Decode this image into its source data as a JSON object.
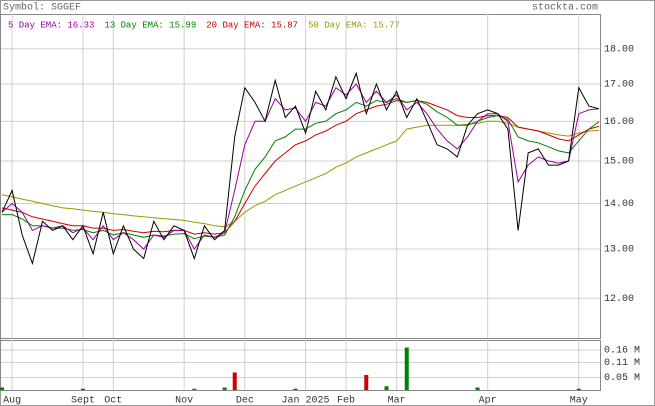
{
  "header": {
    "symbol": "Symbol: SGGEF",
    "site": "stockta.com"
  },
  "chart_data": [
    {
      "type": "line",
      "log_scale": true,
      "grid": true,
      "ylim": [
        11.25,
        19.05
      ],
      "yticks": [
        {
          "value": 12,
          "label": "12.00"
        },
        {
          "value": 13,
          "label": "13.00"
        },
        {
          "value": 14,
          "label": "14.00"
        },
        {
          "value": 15,
          "label": "15.00"
        },
        {
          "value": 16,
          "label": "16.00"
        },
        {
          "value": 17,
          "label": "17.00"
        },
        {
          "value": 18,
          "label": "18.00"
        }
      ],
      "series": [
        {
          "color": "#000000",
          "values": [
            13.8,
            14.3,
            13.3,
            12.7,
            13.6,
            13.4,
            13.5,
            13.2,
            13.5,
            12.9,
            13.8,
            12.9,
            13.5,
            13.0,
            12.8,
            13.6,
            13.2,
            13.5,
            13.4,
            12.8,
            13.5,
            13.2,
            13.4,
            15.6,
            16.9,
            16.5,
            16.0,
            17.1,
            16.1,
            16.4,
            15.7,
            16.8,
            16.3,
            17.2,
            16.6,
            17.3,
            16.2,
            17.0,
            16.3,
            16.8,
            16.1,
            16.6,
            16.0,
            15.4,
            15.3,
            15.1,
            15.9,
            16.2,
            16.3,
            16.2,
            15.8,
            13.4,
            15.2,
            15.3,
            14.9,
            14.9,
            15.0,
            16.9,
            16.4,
            16.33
          ]
        },
        {
          "name": "5 Day EMA: 16.33",
          "color": "#990099",
          "values": [
            13.8,
            14.0,
            13.8,
            13.4,
            13.5,
            13.45,
            13.5,
            13.35,
            13.45,
            13.2,
            13.5,
            13.2,
            13.35,
            13.2,
            13.0,
            13.3,
            13.25,
            13.4,
            13.4,
            13.0,
            13.3,
            13.25,
            13.35,
            14.3,
            15.4,
            16.0,
            16.0,
            16.6,
            16.3,
            16.35,
            16.0,
            16.5,
            16.4,
            16.9,
            16.7,
            17.0,
            16.5,
            16.8,
            16.5,
            16.7,
            16.3,
            16.5,
            16.2,
            15.8,
            15.5,
            15.3,
            15.6,
            16.0,
            16.2,
            16.2,
            16.0,
            14.5,
            14.9,
            15.1,
            15.0,
            14.95,
            15.0,
            16.2,
            16.3,
            16.33
          ]
        },
        {
          "name": "13 Day EMA: 15.99",
          "color": "#008000",
          "values": [
            13.75,
            13.75,
            13.65,
            13.5,
            13.5,
            13.45,
            13.45,
            13.4,
            13.42,
            13.35,
            13.4,
            13.3,
            13.35,
            13.3,
            13.25,
            13.3,
            13.28,
            13.32,
            13.33,
            13.22,
            13.28,
            13.25,
            13.3,
            13.7,
            14.3,
            14.8,
            15.1,
            15.5,
            15.6,
            15.8,
            15.8,
            15.95,
            16.0,
            16.2,
            16.3,
            16.5,
            16.4,
            16.55,
            16.5,
            16.6,
            16.5,
            16.55,
            16.45,
            16.25,
            16.1,
            15.9,
            15.9,
            16.0,
            16.1,
            16.15,
            16.05,
            15.6,
            15.5,
            15.45,
            15.35,
            15.25,
            15.2,
            15.5,
            15.8,
            15.99
          ]
        },
        {
          "name": "20 Day EMA: 15.87",
          "color": "#cc0000",
          "values": [
            13.9,
            13.85,
            13.8,
            13.7,
            13.65,
            13.6,
            13.55,
            13.5,
            13.5,
            13.45,
            13.45,
            13.4,
            13.42,
            13.38,
            13.35,
            13.38,
            13.37,
            13.4,
            13.4,
            13.32,
            13.35,
            13.32,
            13.35,
            13.6,
            14.0,
            14.4,
            14.7,
            15.0,
            15.2,
            15.4,
            15.5,
            15.65,
            15.75,
            15.9,
            16.0,
            16.2,
            16.3,
            16.4,
            16.45,
            16.55,
            16.5,
            16.55,
            16.5,
            16.4,
            16.3,
            16.15,
            16.1,
            16.1,
            16.15,
            16.15,
            16.1,
            15.85,
            15.8,
            15.75,
            15.65,
            15.55,
            15.5,
            15.65,
            15.8,
            15.87
          ]
        },
        {
          "name": "50 Day EMA: 15.77",
          "color": "#999900",
          "values": [
            14.2,
            14.15,
            14.1,
            14.05,
            14.0,
            13.95,
            13.9,
            13.88,
            13.85,
            13.82,
            13.8,
            13.77,
            13.75,
            13.72,
            13.7,
            13.68,
            13.66,
            13.64,
            13.62,
            13.58,
            13.55,
            13.5,
            13.48,
            13.6,
            13.8,
            13.95,
            14.05,
            14.2,
            14.3,
            14.4,
            14.5,
            14.6,
            14.7,
            14.85,
            14.95,
            15.1,
            15.2,
            15.3,
            15.4,
            15.5,
            15.8,
            15.85,
            15.9,
            15.9,
            15.9,
            15.9,
            15.92,
            15.95,
            16.0,
            16.0,
            15.95,
            15.85,
            15.8,
            15.75,
            15.7,
            15.65,
            15.62,
            15.7,
            15.75,
            15.77
          ]
        }
      ]
    },
    {
      "type": "bar",
      "grid": true,
      "categories": [
        null,
        "Aug",
        null,
        null,
        null,
        null,
        null,
        null,
        "Sept",
        null,
        null,
        "Oct",
        null,
        null,
        null,
        null,
        null,
        null,
        "Nov",
        null,
        null,
        null,
        null,
        null,
        "Dec",
        null,
        null,
        null,
        null,
        null,
        "Jan 2025",
        null,
        null,
        null,
        "Feb",
        null,
        null,
        null,
        null,
        "Mar",
        null,
        null,
        null,
        null,
        null,
        null,
        null,
        null,
        "Apr",
        null,
        null,
        null,
        null,
        null,
        null,
        null,
        null,
        "May",
        null,
        null
      ],
      "ylim": [
        0,
        0.2
      ],
      "yticks": [
        {
          "value": 0.05,
          "label": "0.05 M"
        },
        {
          "value": 0.11,
          "label": "0.11 M"
        },
        {
          "value": 0.16,
          "label": "0.16 M"
        }
      ],
      "colors": [
        "#008000",
        "#008000",
        "#008000",
        "#008000",
        "#008000",
        "#008000",
        "#008000",
        "#008000",
        "#cc0000",
        "#008000",
        "#008000",
        "#008000",
        "#008000",
        "#008000",
        "#008000",
        "#008000",
        "#008000",
        "#008000",
        "#008000",
        "#008000",
        "#008000",
        "#008000",
        "#008000",
        "#cc0000",
        "#008000",
        "#008000",
        "#008000",
        "#008000",
        "#008000",
        "#cc0000",
        "#008000",
        "#008000",
        "#008000",
        "#008000",
        "#008000",
        "#008000",
        "#cc0000",
        "#008000",
        "#008000",
        "#008000",
        "#008000",
        "#008000",
        "#008000",
        "#008000",
        "#008000",
        "#008000",
        "#008000",
        "#008000",
        "#008000",
        "#008000",
        "#008000",
        "#008000",
        "#008000",
        "#008000",
        "#008000",
        "#008000",
        "#008000",
        "#cc0000",
        "#008000",
        "#008000"
      ],
      "values": [
        0.01,
        0,
        0,
        0,
        0,
        0,
        0,
        0,
        0.005,
        0,
        0,
        0,
        0,
        0,
        0,
        0,
        0,
        0,
        0,
        0.005,
        0,
        0,
        0.01,
        0.07,
        0,
        0,
        0,
        0,
        0,
        0.005,
        0,
        0,
        0,
        0,
        0,
        0,
        0.06,
        0,
        0.015,
        0,
        0.17,
        0,
        0,
        0,
        0,
        0,
        0,
        0.01,
        0,
        0,
        0,
        0,
        0,
        0,
        0,
        0,
        0,
        0.005,
        0,
        0
      ]
    }
  ]
}
